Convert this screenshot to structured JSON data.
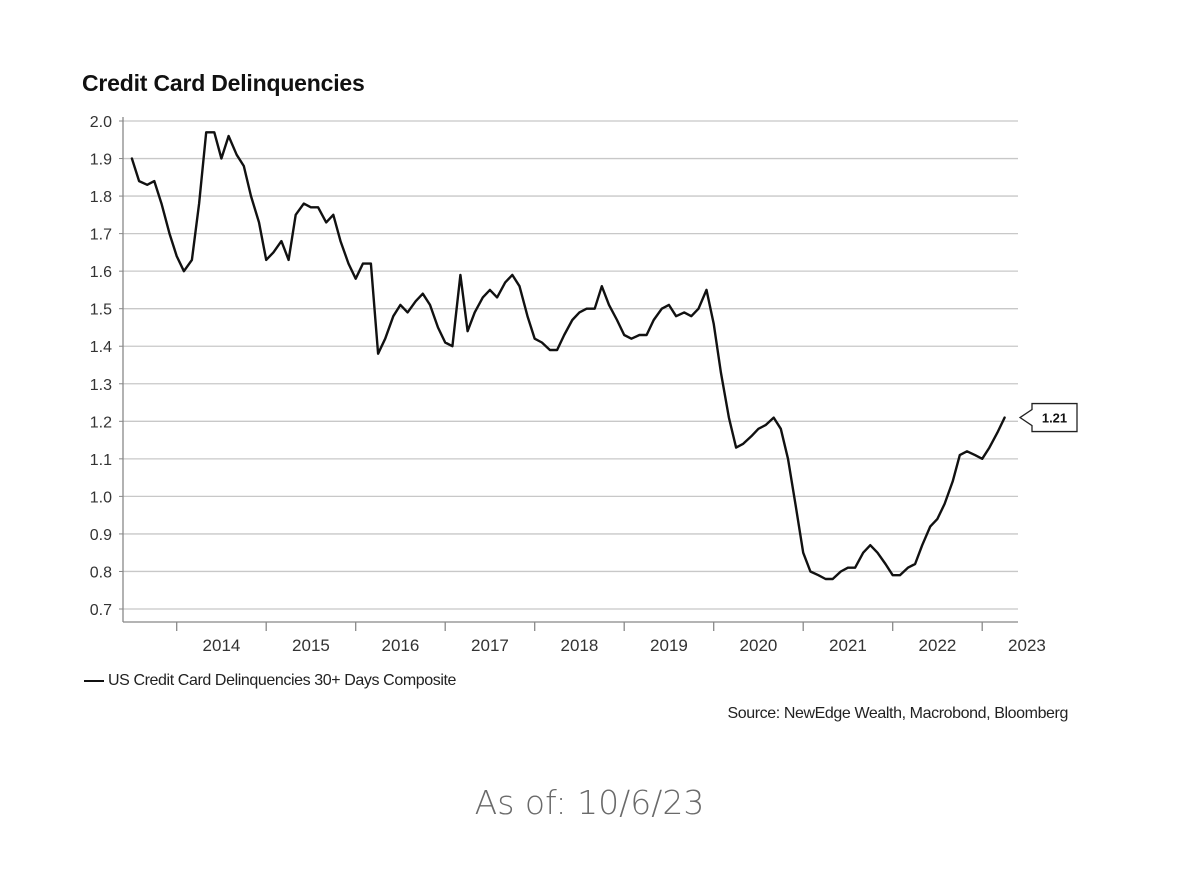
{
  "chart_data": {
    "type": "line",
    "title": "Credit Card Delinquencies",
    "xlabel": "",
    "ylabel": "",
    "ylim": [
      0.7,
      2.0
    ],
    "yticks": [
      "2.0",
      "1.9",
      "1.8",
      "1.7",
      "1.6",
      "1.5",
      "1.4",
      "1.3",
      "1.2",
      "1.1",
      "1.0",
      "0.9",
      "0.8",
      "0.7"
    ],
    "xlim": [
      2013.4,
      2023.4
    ],
    "xticks": [
      "2014",
      "2015",
      "2016",
      "2017",
      "2018",
      "2019",
      "2020",
      "2021",
      "2022",
      "2023"
    ],
    "grid": true,
    "legend_placement": "bottom-left",
    "series": [
      {
        "name": "US Credit Card Delinquencies 30+ Days Composite",
        "color": "#111111",
        "x": [
          2013.5,
          2013.58,
          2013.67,
          2013.75,
          2013.83,
          2013.92,
          2014.0,
          2014.08,
          2014.17,
          2014.25,
          2014.33,
          2014.42,
          2014.5,
          2014.58,
          2014.67,
          2014.75,
          2014.83,
          2014.92,
          2015.0,
          2015.08,
          2015.17,
          2015.25,
          2015.33,
          2015.42,
          2015.5,
          2015.58,
          2015.67,
          2015.75,
          2015.83,
          2015.92,
          2016.0,
          2016.08,
          2016.17,
          2016.25,
          2016.33,
          2016.42,
          2016.5,
          2016.58,
          2016.67,
          2016.75,
          2016.83,
          2016.92,
          2017.0,
          2017.08,
          2017.17,
          2017.25,
          2017.33,
          2017.42,
          2017.5,
          2017.58,
          2017.67,
          2017.75,
          2017.83,
          2017.92,
          2018.0,
          2018.08,
          2018.17,
          2018.25,
          2018.33,
          2018.42,
          2018.5,
          2018.58,
          2018.67,
          2018.75,
          2018.83,
          2018.92,
          2019.0,
          2019.08,
          2019.17,
          2019.25,
          2019.33,
          2019.42,
          2019.5,
          2019.58,
          2019.67,
          2019.75,
          2019.83,
          2019.92,
          2020.0,
          2020.08,
          2020.17,
          2020.25,
          2020.33,
          2020.42,
          2020.5,
          2020.58,
          2020.67,
          2020.75,
          2020.83,
          2020.92,
          2021.0,
          2021.08,
          2021.17,
          2021.25,
          2021.33,
          2021.42,
          2021.5,
          2021.58,
          2021.67,
          2021.75,
          2021.83,
          2021.92,
          2022.0,
          2022.08,
          2022.17,
          2022.25,
          2022.33,
          2022.42,
          2022.5,
          2022.58,
          2022.67,
          2022.75,
          2022.83,
          2022.92,
          2023.0,
          2023.08,
          2023.17,
          2023.25
        ],
        "values": [
          1.9,
          1.84,
          1.83,
          1.84,
          1.78,
          1.7,
          1.64,
          1.6,
          1.63,
          1.78,
          1.97,
          1.97,
          1.9,
          1.96,
          1.91,
          1.88,
          1.8,
          1.73,
          1.63,
          1.65,
          1.68,
          1.63,
          1.75,
          1.78,
          1.77,
          1.77,
          1.73,
          1.75,
          1.68,
          1.62,
          1.58,
          1.62,
          1.62,
          1.38,
          1.42,
          1.48,
          1.51,
          1.49,
          1.52,
          1.54,
          1.51,
          1.45,
          1.41,
          1.4,
          1.59,
          1.44,
          1.49,
          1.53,
          1.55,
          1.53,
          1.57,
          1.59,
          1.56,
          1.48,
          1.42,
          1.41,
          1.39,
          1.39,
          1.43,
          1.47,
          1.49,
          1.5,
          1.5,
          1.56,
          1.51,
          1.47,
          1.43,
          1.42,
          1.43,
          1.43,
          1.47,
          1.5,
          1.51,
          1.48,
          1.49,
          1.48,
          1.5,
          1.55,
          1.46,
          1.33,
          1.21,
          1.13,
          1.14,
          1.16,
          1.18,
          1.19,
          1.21,
          1.18,
          1.1,
          0.97,
          0.85,
          0.8,
          0.79,
          0.78,
          0.78,
          0.8,
          0.81,
          0.81,
          0.85,
          0.87,
          0.85,
          0.82,
          0.79,
          0.79,
          0.81,
          0.82,
          0.87,
          0.92,
          0.94,
          0.98,
          1.04,
          1.11,
          1.12,
          1.11,
          1.1,
          1.13,
          1.17,
          1.21
        ]
      }
    ],
    "last_value_label": "1.21",
    "legend_label": "US Credit Card Delinquencies 30+ Days Composite",
    "source": "Source: NewEdge Wealth, Macrobond, Bloomberg"
  },
  "footer": {
    "as_of": "As of: 10/6/23"
  },
  "colors": {
    "line": "#111111",
    "grid": "#c8c8c8",
    "axis": "#888888",
    "caption": "#6a6a6a"
  }
}
